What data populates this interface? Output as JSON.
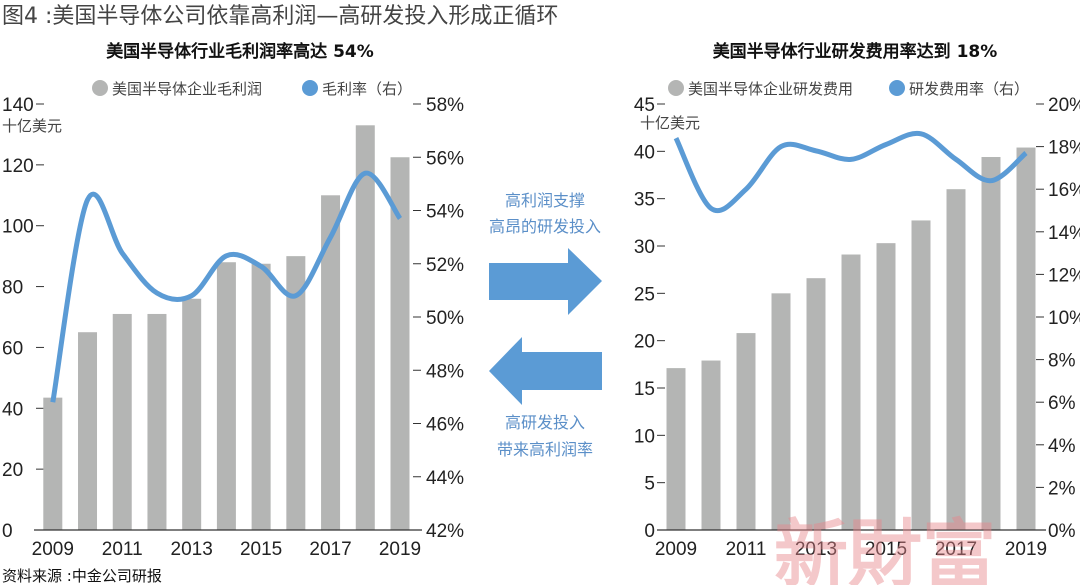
{
  "figure_title": "图4 :美国半导体公司依靠高利润—高研发投入形成正循环",
  "source": "资料来源 :中金公司研报",
  "watermark": "新財富",
  "colors": {
    "bar": "#b4b5b4",
    "line": "#5b9bd5",
    "arrow": "#5b9bd5",
    "arrow_text": "#5b8fc8",
    "watermark": "#e8868c"
  },
  "middle": {
    "top_text": [
      "高利润支撑",
      "高昂的研发投入"
    ],
    "bottom_text": [
      "高研发投入",
      "带来高利润率"
    ]
  },
  "chart_data": [
    {
      "type": "bar+line",
      "title": "美国半导体行业毛利润率高达 54%",
      "ylabel": "十亿美元",
      "categories": [
        "2009",
        "2010",
        "2011",
        "2012",
        "2013",
        "2014",
        "2015",
        "2016",
        "2017",
        "2018",
        "2019"
      ],
      "x_tick_labels": [
        "2009",
        "2011",
        "2013",
        "2015",
        "2017",
        "2019"
      ],
      "ylim": [
        0,
        140
      ],
      "y_ticks": [
        "0",
        "20",
        "40",
        "60",
        "80",
        "100",
        "120",
        "140"
      ],
      "y2lim": [
        42,
        58
      ],
      "y2_ticks": [
        "42%",
        "44%",
        "46%",
        "48%",
        "50%",
        "52%",
        "54%",
        "56%",
        "58%"
      ],
      "legend_placement": "top",
      "series": [
        {
          "name": "美国半导体企业毛利润",
          "kind": "bar",
          "axis": "left",
          "values": [
            43.5,
            65,
            71,
            71,
            76,
            88,
            87.5,
            90,
            110,
            133,
            122.5
          ]
        },
        {
          "name": "毛利率（右）",
          "kind": "line",
          "axis": "right",
          "values": [
            46.8,
            54.4,
            52.4,
            50.9,
            50.8,
            52.3,
            51.9,
            50.8,
            53.0,
            55.4,
            53.7
          ]
        }
      ]
    },
    {
      "type": "bar+line",
      "title": "美国半导体行业研发费用率达到 18%",
      "ylabel": "十亿美元",
      "categories": [
        "2009",
        "2010",
        "2011",
        "2012",
        "2013",
        "2014",
        "2015",
        "2016",
        "2017",
        "2018",
        "2019"
      ],
      "x_tick_labels": [
        "2009",
        "2011",
        "2013",
        "2015",
        "2017",
        "2019"
      ],
      "ylim": [
        0,
        45
      ],
      "y_ticks": [
        "0",
        "5",
        "10",
        "15",
        "20",
        "25",
        "30",
        "35",
        "40",
        "45"
      ],
      "y2lim": [
        0,
        20
      ],
      "y2_ticks": [
        "0%",
        "2%",
        "4%",
        "6%",
        "8%",
        "10%",
        "12%",
        "14%",
        "16%",
        "18%",
        "20%"
      ],
      "legend_placement": "top",
      "series": [
        {
          "name": "美国半导体企业研发费用",
          "kind": "bar",
          "axis": "left",
          "values": [
            17.1,
            17.9,
            20.8,
            25,
            26.6,
            29.1,
            30.3,
            32.7,
            36,
            39.4,
            40.4
          ]
        },
        {
          "name": "研发费用率（右）",
          "kind": "line",
          "axis": "right",
          "values": [
            18.4,
            15.1,
            16.0,
            18.0,
            17.8,
            17.4,
            18.1,
            18.6,
            17.4,
            16.4,
            17.7
          ]
        }
      ]
    }
  ]
}
